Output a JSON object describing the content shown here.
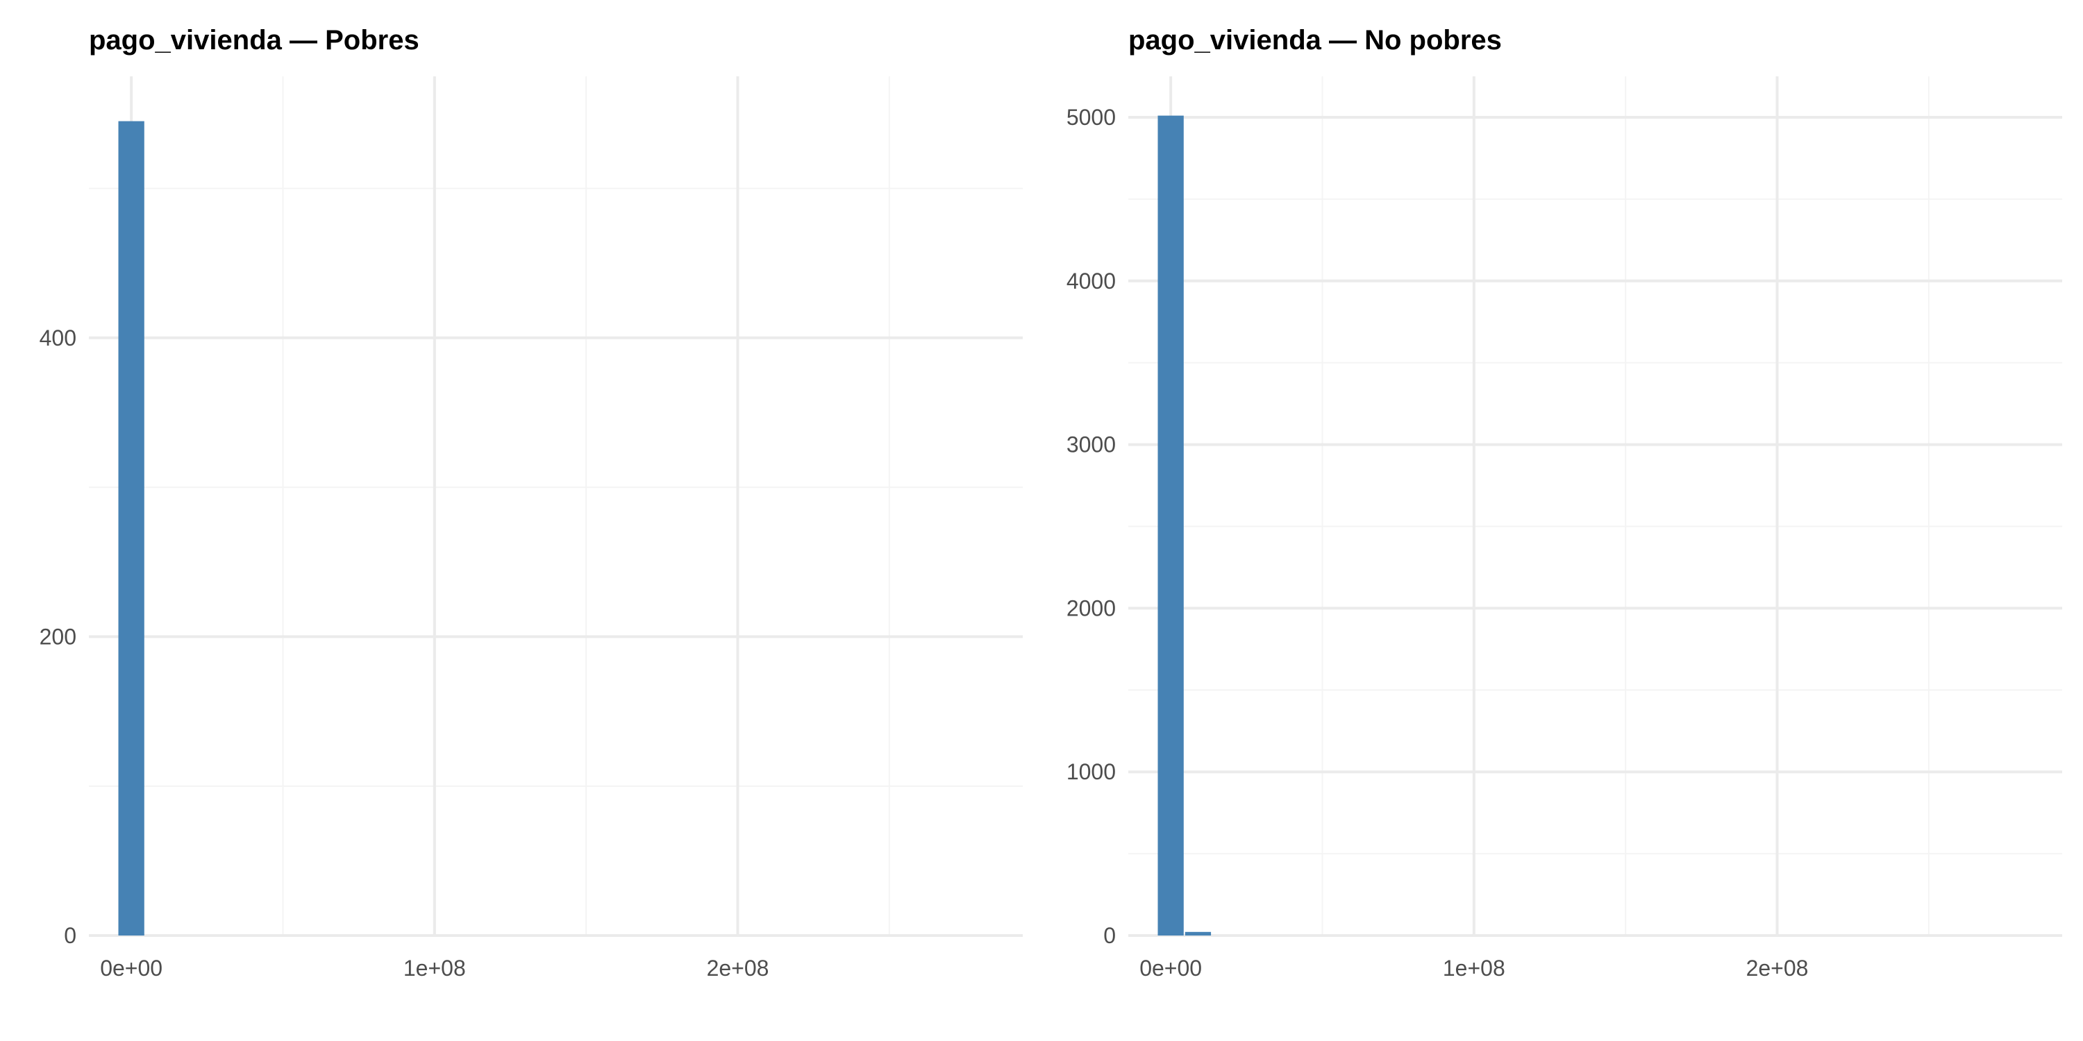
{
  "colors": {
    "bar": "#4682b4",
    "grid_major": "#ebebeb",
    "grid_minor": "#f4f4f4",
    "tick_text": "#4d4d4d"
  },
  "chart_data": [
    {
      "type": "bar",
      "title": "pago_vivienda — Pobres",
      "xlabel": "",
      "ylabel": "",
      "xlim": [
        -14000000,
        294000000
      ],
      "ylim": [
        0,
        575
      ],
      "x_ticks": [
        {
          "value": 0,
          "label": "0e+00"
        },
        {
          "value": 100000000,
          "label": "1e+08"
        },
        {
          "value": 200000000,
          "label": "2e+08"
        }
      ],
      "y_ticks": [
        {
          "value": 0,
          "label": "0"
        },
        {
          "value": 200,
          "label": "200"
        },
        {
          "value": 400,
          "label": "400"
        }
      ],
      "bin_width": 9000000,
      "bins": [
        {
          "start": -4500000,
          "end": 4500000,
          "count": 545
        }
      ],
      "grid": true,
      "legend": "none"
    },
    {
      "type": "bar",
      "title": "pago_vivienda — No pobres",
      "xlabel": "",
      "ylabel": "",
      "xlim": [
        -14000000,
        294000000
      ],
      "ylim": [
        0,
        5250
      ],
      "x_ticks": [
        {
          "value": 0,
          "label": "0e+00"
        },
        {
          "value": 100000000,
          "label": "1e+08"
        },
        {
          "value": 200000000,
          "label": "2e+08"
        }
      ],
      "y_ticks": [
        {
          "value": 0,
          "label": "0"
        },
        {
          "value": 1000,
          "label": "1000"
        },
        {
          "value": 2000,
          "label": "2000"
        },
        {
          "value": 3000,
          "label": "3000"
        },
        {
          "value": 4000,
          "label": "4000"
        },
        {
          "value": 5000,
          "label": "5000"
        }
      ],
      "bin_width": 9000000,
      "bins": [
        {
          "start": -4500000,
          "end": 4500000,
          "count": 5010
        },
        {
          "start": 4500000,
          "end": 13500000,
          "count": 22
        }
      ],
      "grid": true,
      "legend": "none"
    }
  ]
}
